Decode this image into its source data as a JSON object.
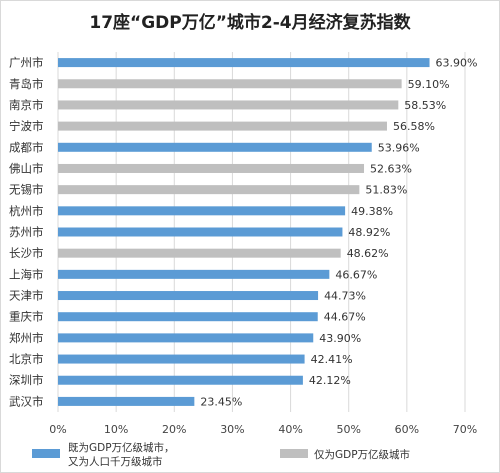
{
  "chart_data": {
    "type": "bar",
    "orientation": "horizontal",
    "title": "17座“GDP万亿”城市2-4月经济复苏指数",
    "categories": [
      "广州市",
      "青岛市",
      "南京市",
      "宁波市",
      "成都市",
      "佛山市",
      "无锡市",
      "杭州市",
      "苏州市",
      "长沙市",
      "上海市",
      "天津市",
      "重庆市",
      "郑州市",
      "北京市",
      "深圳市",
      "武汉市"
    ],
    "values": [
      63.9,
      59.1,
      58.53,
      56.58,
      53.96,
      52.63,
      51.83,
      49.38,
      48.92,
      48.62,
      46.67,
      44.73,
      44.67,
      43.9,
      42.41,
      42.12,
      23.45
    ],
    "value_labels": [
      "63.90%",
      "59.10%",
      "58.53%",
      "56.58%",
      "53.96%",
      "52.63%",
      "51.83%",
      "49.38%",
      "48.92%",
      "48.62%",
      "46.67%",
      "44.73%",
      "44.67%",
      "43.90%",
      "42.41%",
      "42.12%",
      "23.45%"
    ],
    "group": [
      "A",
      "B",
      "B",
      "B",
      "A",
      "B",
      "B",
      "A",
      "A",
      "B",
      "A",
      "A",
      "A",
      "A",
      "A",
      "A",
      "A"
    ],
    "series": [
      {
        "key": "A",
        "name": "既为GDP万亿级城市，又为人口千万级城市",
        "name_lines": [
          "既为GDP万亿级城市，",
          "又为人口千万级城市"
        ],
        "color": "#5b9bd5"
      },
      {
        "key": "B",
        "name": "仅为GDP万亿级城市",
        "name_lines": [
          "仅为GDP万亿级城市"
        ],
        "color": "#bfbfbf"
      }
    ],
    "xlim": [
      0,
      70
    ],
    "xticks": [
      "0%",
      "10%",
      "20%",
      "30%",
      "40%",
      "50%",
      "60%",
      "70%"
    ],
    "grid": true,
    "legend": "bottom"
  }
}
